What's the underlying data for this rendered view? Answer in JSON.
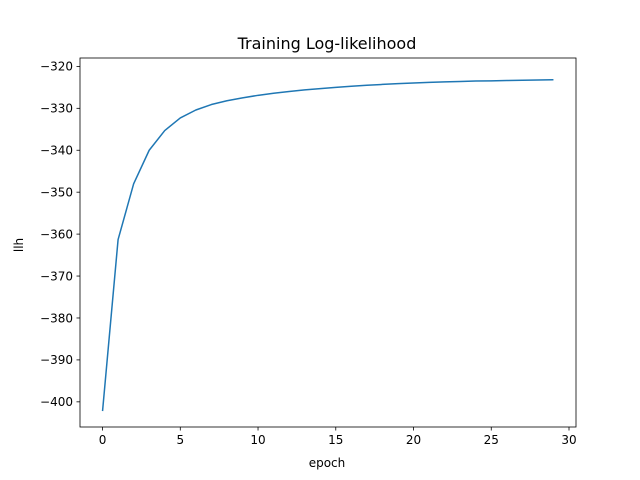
{
  "chart_data": {
    "type": "line",
    "title": "Training Log-likelihood",
    "xlabel": "epoch",
    "ylabel": "llh",
    "xlim": [
      -1.45,
      30.45
    ],
    "ylim": [
      -406,
      -318
    ],
    "xticks": [
      0,
      5,
      10,
      15,
      20,
      25,
      30
    ],
    "yticks": [
      -400,
      -390,
      -380,
      -370,
      -360,
      -350,
      -340,
      -330,
      -320
    ],
    "x_tick_labels": [
      "0",
      "5",
      "10",
      "15",
      "20",
      "25",
      "30"
    ],
    "y_tick_labels": [
      "−400",
      "−390",
      "−380",
      "−370",
      "−360",
      "−350",
      "−340",
      "−330",
      "−320"
    ],
    "grid": false,
    "legend": "none",
    "series": [
      {
        "color": "#1f77b4",
        "x": [
          0,
          1,
          2,
          3,
          4,
          5,
          6,
          7,
          8,
          9,
          10,
          11,
          12,
          13,
          14,
          15,
          16,
          17,
          18,
          19,
          20,
          21,
          22,
          23,
          24,
          25,
          26,
          27,
          28,
          29
        ],
        "y": [
          -402.2,
          -361.3,
          -348.0,
          -340.0,
          -335.3,
          -332.3,
          -330.4,
          -329.1,
          -328.2,
          -327.5,
          -326.9,
          -326.4,
          -326.0,
          -325.6,
          -325.3,
          -325.0,
          -324.75,
          -324.5,
          -324.3,
          -324.1,
          -323.95,
          -323.8,
          -323.7,
          -323.6,
          -323.5,
          -323.45,
          -323.38,
          -323.32,
          -323.26,
          -323.2
        ]
      }
    ]
  }
}
